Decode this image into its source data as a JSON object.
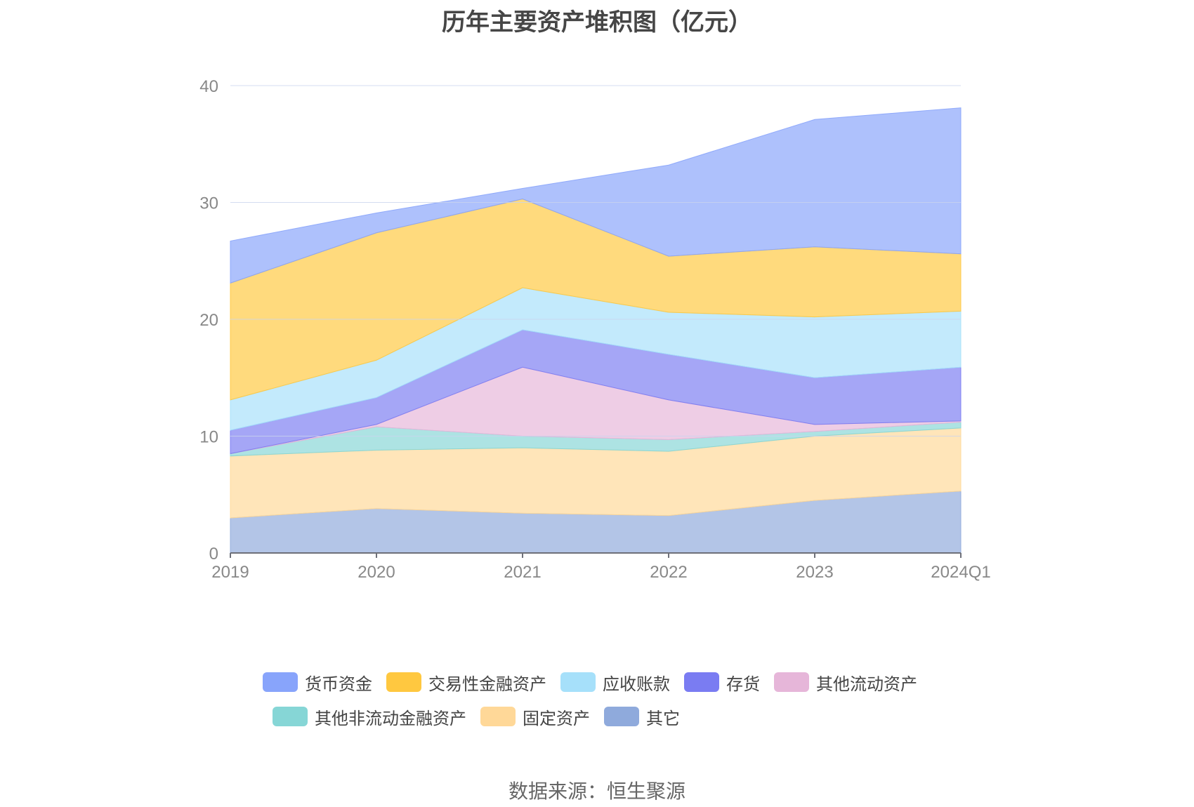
{
  "chart_data": {
    "type": "area",
    "stacked": true,
    "title": "历年主要资产堆积图（亿元）",
    "categories": [
      "2019",
      "2020",
      "2021",
      "2022",
      "2023",
      "2024Q1"
    ],
    "ylim": [
      0,
      40
    ],
    "yticks": [
      0,
      10,
      20,
      30,
      40
    ],
    "grid": true,
    "legend_position": "bottom",
    "series": [
      {
        "name": "其它",
        "color": "#8FAADC",
        "values": [
          3.0,
          3.8,
          3.4,
          3.2,
          4.5,
          5.3
        ]
      },
      {
        "name": "固定资产",
        "color": "#FFD898",
        "values": [
          5.3,
          5.0,
          5.6,
          5.5,
          5.5,
          5.4
        ]
      },
      {
        "name": "其他非流动金融资产",
        "color": "#86D6D6",
        "values": [
          0.2,
          2.0,
          1.0,
          1.0,
          0.4,
          0.5
        ]
      },
      {
        "name": "其他流动资产",
        "color": "#E6B6D9",
        "values": [
          0.0,
          0.2,
          5.9,
          3.4,
          0.6,
          0.1
        ]
      },
      {
        "name": "存货",
        "color": "#7A7CF2",
        "values": [
          2.0,
          2.3,
          3.2,
          3.9,
          4.0,
          4.6
        ]
      },
      {
        "name": "应收账款",
        "color": "#A6E0FA",
        "values": [
          2.6,
          3.2,
          3.6,
          3.6,
          5.2,
          4.8
        ]
      },
      {
        "name": "交易性金融资产",
        "color": "#FFC840",
        "values": [
          10.0,
          10.9,
          7.6,
          4.8,
          6.0,
          4.9
        ]
      },
      {
        "name": "货币资金",
        "color": "#88A4FB",
        "values": [
          3.6,
          1.7,
          0.9,
          7.8,
          10.9,
          12.5
        ]
      }
    ]
  },
  "legend": [
    {
      "label": "货币资金",
      "color": "#88A4FB"
    },
    {
      "label": "交易性金融资产",
      "color": "#FFC840"
    },
    {
      "label": "应收账款",
      "color": "#A6E0FA"
    },
    {
      "label": "存货",
      "color": "#7A7CF2"
    },
    {
      "label": "其他流动资产",
      "color": "#E6B6D9"
    },
    {
      "label": "其他非流动金融资产",
      "color": "#86D6D6"
    },
    {
      "label": "固定资产",
      "color": "#FFD898"
    },
    {
      "label": "其它",
      "color": "#8FAADC"
    }
  ],
  "source": "数据来源：恒生聚源"
}
